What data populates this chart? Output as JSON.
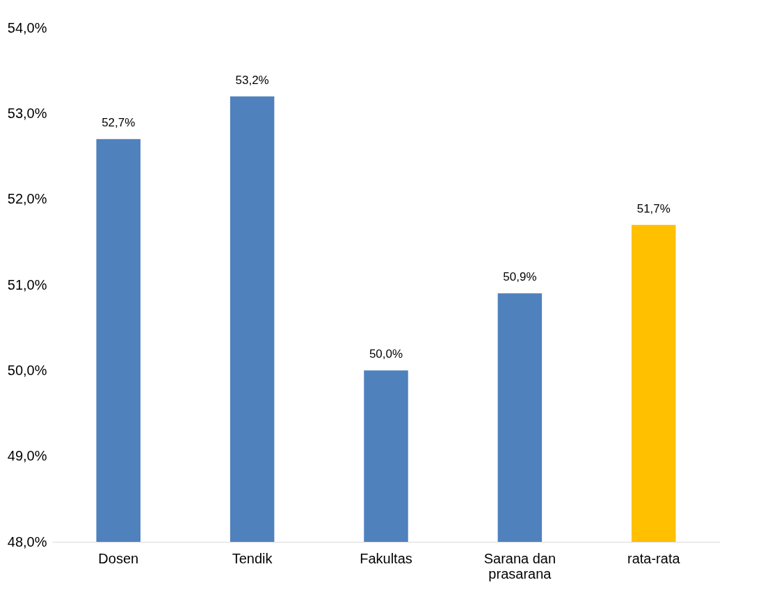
{
  "chart_data": {
    "type": "bar",
    "categories": [
      "Dosen",
      "Tendik",
      "Fakultas",
      "Sarana dan prasarana",
      "rata-rata"
    ],
    "values": [
      52.7,
      53.2,
      50.0,
      50.9,
      51.7
    ],
    "colors": [
      "#4f81bd",
      "#4f81bd",
      "#4f81bd",
      "#4f81bd",
      "#ffc000"
    ],
    "value_labels": [
      "52,7%",
      "53,2%",
      "50,0%",
      "50,9%",
      "51,7%"
    ],
    "ylim": [
      48,
      54
    ],
    "yticks": [
      {
        "value": 48,
        "label": "48,0%"
      },
      {
        "value": 49,
        "label": "49,0%"
      },
      {
        "value": 50,
        "label": "50,0%"
      },
      {
        "value": 51,
        "label": "51,0%"
      },
      {
        "value": 52,
        "label": "52,0%"
      },
      {
        "value": 53,
        "label": "53,0%"
      },
      {
        "value": 54,
        "label": "54,0%"
      }
    ],
    "grid": false
  }
}
